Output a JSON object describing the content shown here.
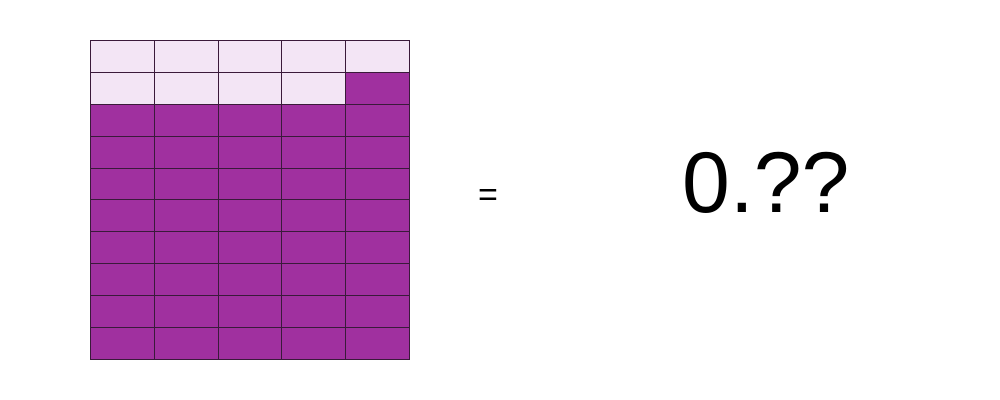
{
  "grid": {
    "rows": 10,
    "columns": 5,
    "shaded_cells": 41,
    "shaded_color": "#a0309f",
    "unshaded_color": "#f3e5f5"
  },
  "equation": {
    "equals_sign": "=",
    "result": "0.??"
  }
}
